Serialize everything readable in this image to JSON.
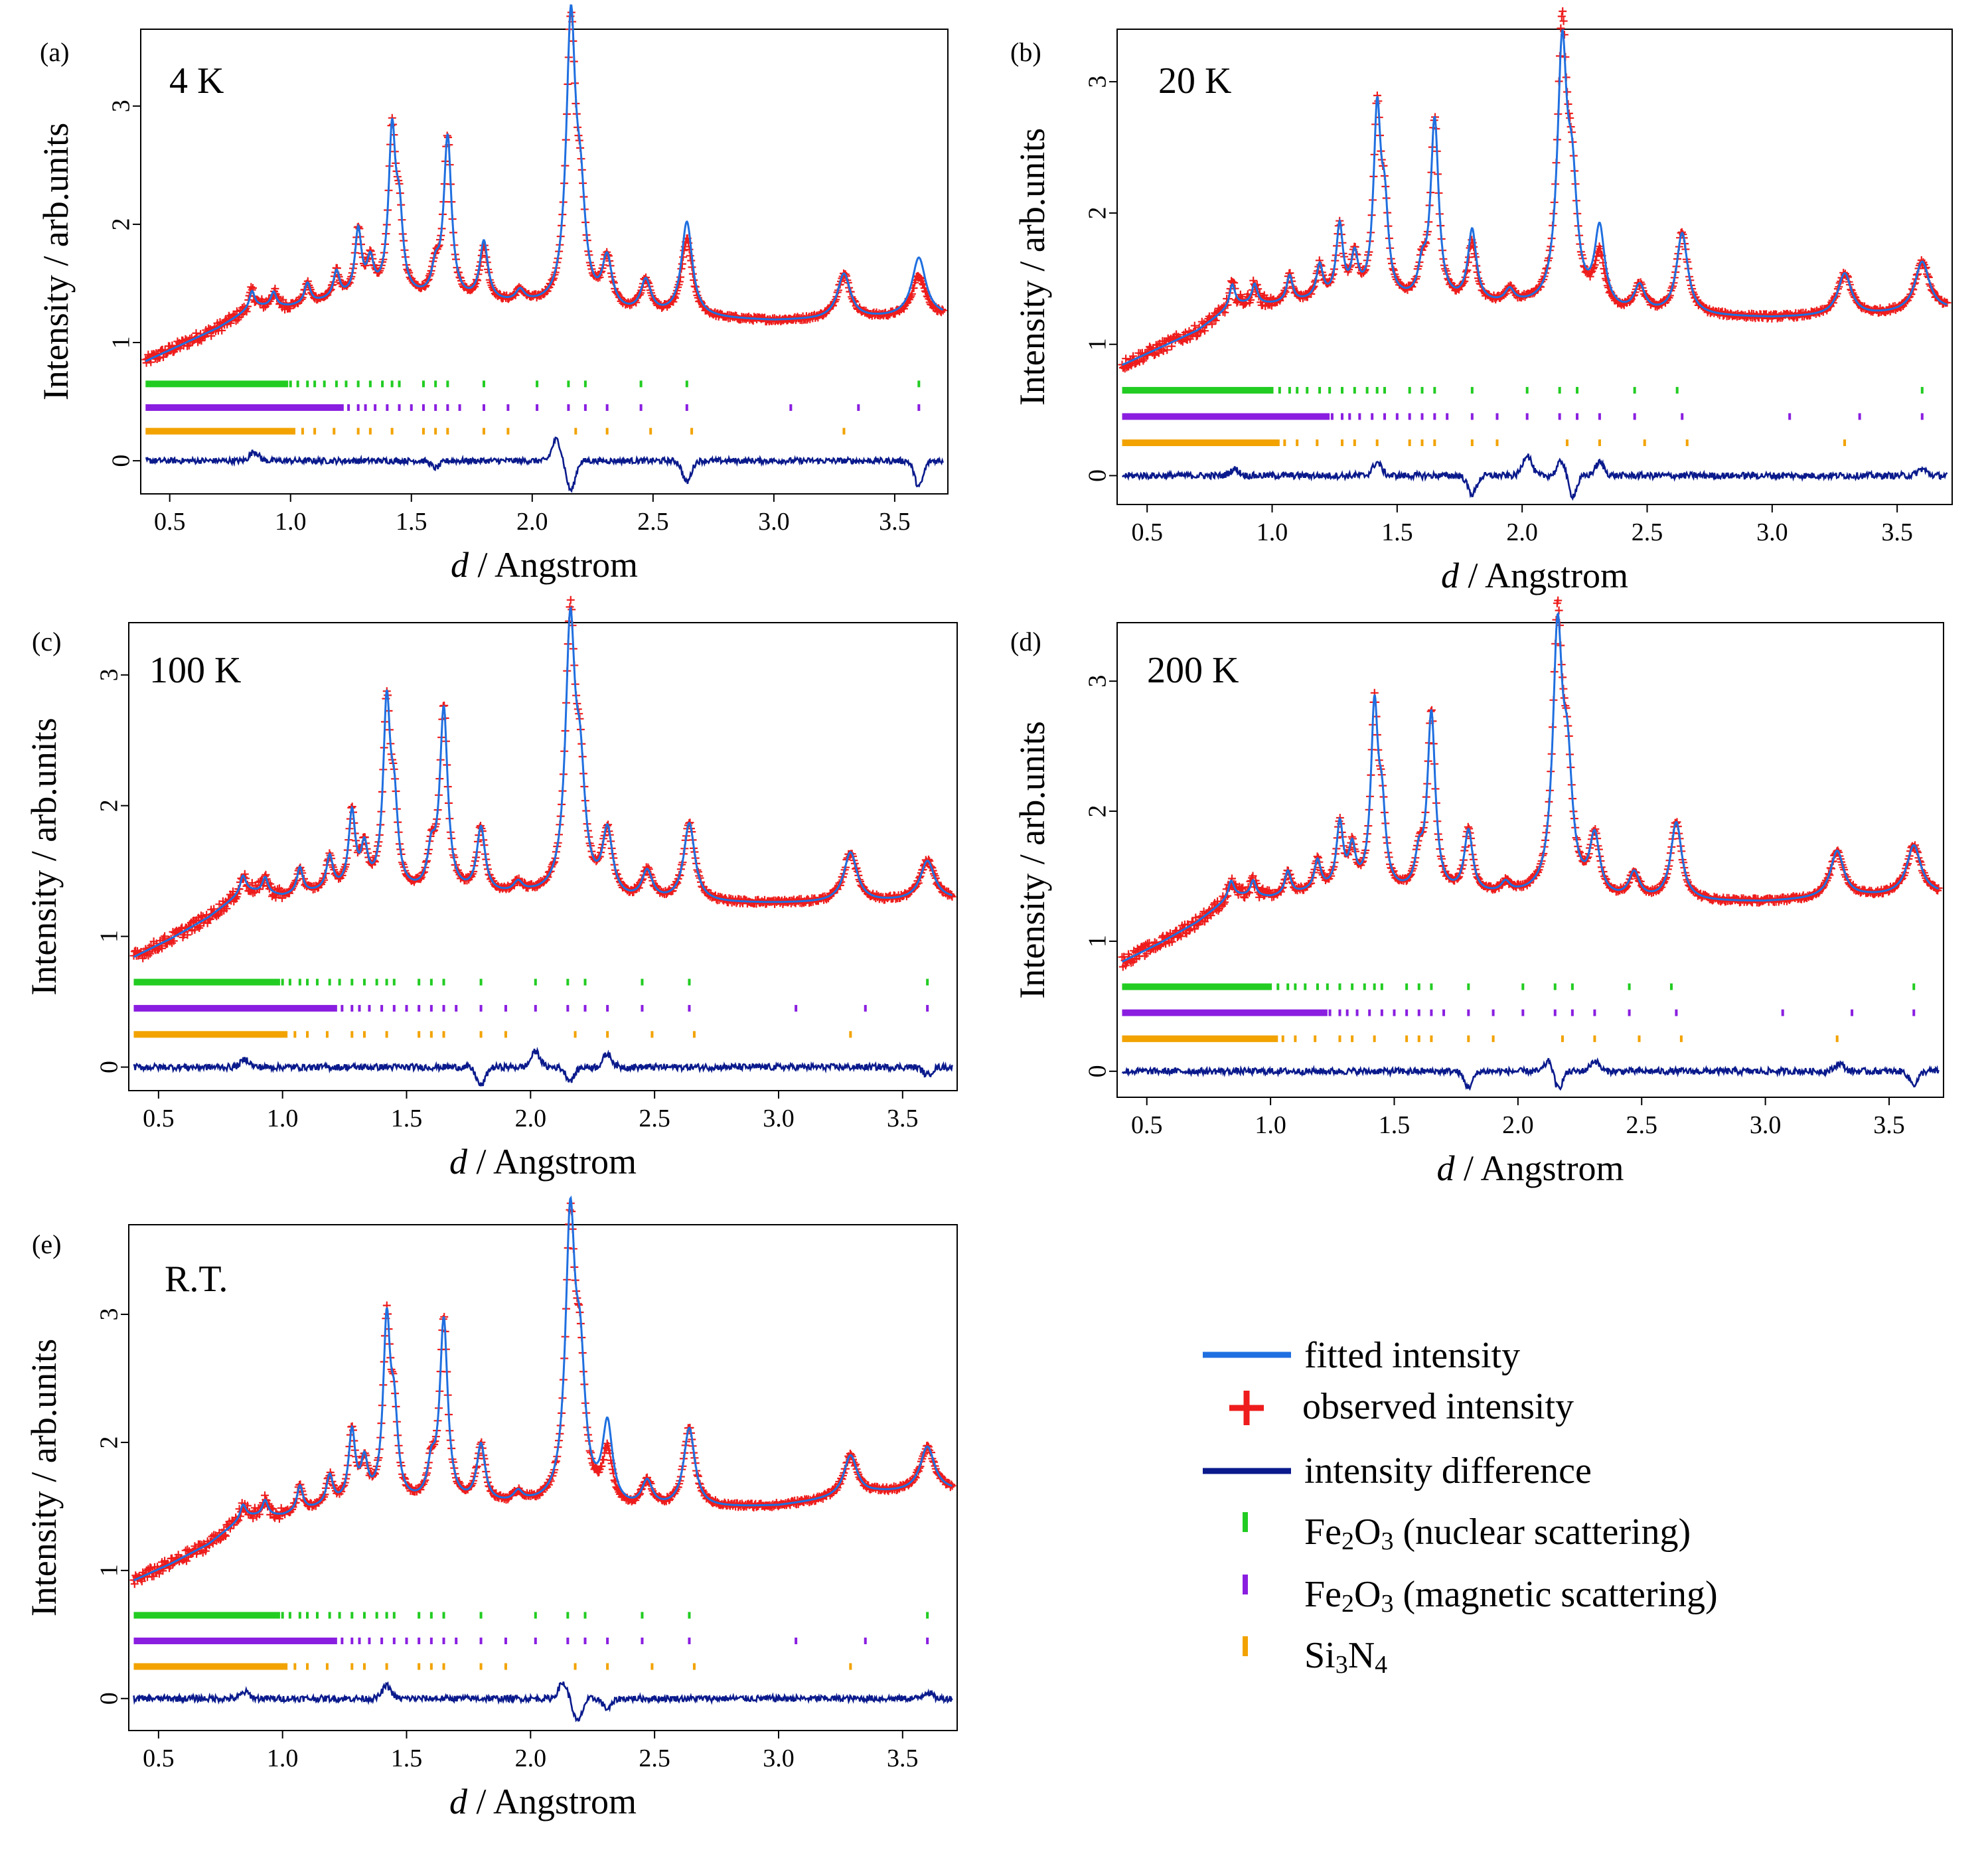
{
  "figure": {
    "xlabel_italic": "d",
    "xlabel_rest": " / Angstrom",
    "ylabel": "Intensity / arb.units"
  },
  "legend": {
    "fitted": "fitted intensity",
    "observed": "observed intensity",
    "difference": "intensity difference",
    "nuclear": {
      "a": "Fe",
      "b": "2",
      "c": "O",
      "d": "3",
      "e": " (nuclear scattering)"
    },
    "magnetic": {
      "a": "Fe",
      "b": "2",
      "c": "O",
      "d": "3",
      "e": " (magnetic scattering)"
    },
    "si3n4": {
      "a": "Si",
      "b": "3",
      "c": "N",
      "d": "4"
    }
  },
  "colors": {
    "fitted": "#1f6fe0",
    "observed": "#ee1c1c",
    "difference": "#0a1a8c",
    "nuclear": "#22cc22",
    "magnetic": "#8a1ee0",
    "si3n4": "#f2a300"
  },
  "chart_data": [
    {
      "id": "a",
      "panel_label": "(a)",
      "temperature": "4 K",
      "type": "line",
      "xlim": [
        0.38,
        3.72
      ],
      "ylim": [
        -0.28,
        3.65
      ],
      "xticks": [
        "0.5",
        "1.0",
        "1.5",
        "2.0",
        "2.5",
        "3.0",
        "3.5"
      ],
      "yticks": [
        "0",
        "1",
        "2",
        "3"
      ],
      "background": [
        [
          0.4,
          0.84
        ],
        [
          0.55,
          0.98
        ],
        [
          0.7,
          1.12
        ],
        [
          0.85,
          1.3
        ],
        [
          1.0,
          1.3
        ],
        [
          1.2,
          1.36
        ],
        [
          1.4,
          1.38
        ],
        [
          1.6,
          1.34
        ],
        [
          2.0,
          1.3
        ],
        [
          2.4,
          1.22
        ],
        [
          3.0,
          1.18
        ],
        [
          3.4,
          1.2
        ],
        [
          3.72,
          1.22
        ]
      ],
      "peaks": [
        [
          0.84,
          0.14
        ],
        [
          0.93,
          0.12
        ],
        [
          1.07,
          0.17
        ],
        [
          1.19,
          0.22
        ],
        [
          1.28,
          0.55
        ],
        [
          1.33,
          0.27
        ],
        [
          1.42,
          1.33
        ],
        [
          1.45,
          0.6
        ],
        [
          1.6,
          0.22
        ],
        [
          1.65,
          1.37
        ],
        [
          1.8,
          0.45
        ],
        [
          1.95,
          0.1
        ],
        [
          2.16,
          2.3
        ],
        [
          2.2,
          0.75
        ],
        [
          2.31,
          0.42
        ],
        [
          2.47,
          0.28
        ],
        [
          2.64,
          0.65
        ],
        [
          3.29,
          0.38
        ],
        [
          3.6,
          0.35
        ]
      ],
      "fit_scale": {
        "2.16": 2.37,
        "2.64": 0.8,
        "3.6": 0.5,
        "1.8": 0.5
      },
      "diff_features": [
        [
          0.85,
          0.08
        ],
        [
          1.6,
          -0.06
        ],
        [
          2.1,
          0.18
        ],
        [
          2.16,
          -0.25
        ],
        [
          2.64,
          -0.18
        ],
        [
          3.6,
          -0.22
        ]
      ],
      "nuclear_ticks": [
        1.0,
        1.03,
        1.07,
        1.1,
        1.14,
        1.19,
        1.23,
        1.28,
        1.33,
        1.38,
        1.42,
        1.45,
        1.55,
        1.6,
        1.65,
        1.8,
        2.02,
        2.15,
        2.22,
        2.45,
        2.64,
        3.6
      ],
      "magnetic_ticks": [
        1.24,
        1.28,
        1.31,
        1.35,
        1.4,
        1.45,
        1.5,
        1.55,
        1.6,
        1.65,
        1.7,
        1.8,
        1.9,
        2.02,
        2.15,
        2.22,
        2.31,
        2.45,
        2.64,
        3.07,
        3.35,
        3.6
      ],
      "si3n4_ticks": [
        1.05,
        1.1,
        1.18,
        1.28,
        1.33,
        1.42,
        1.55,
        1.6,
        1.65,
        1.8,
        1.9,
        2.18,
        2.31,
        2.49,
        2.66,
        3.29
      ],
      "dense_end": [
        0.99,
        1.22,
        1.02
      ]
    },
    {
      "id": "b",
      "panel_label": "(b)",
      "temperature": "20 K",
      "type": "line",
      "xlim": [
        0.38,
        3.72
      ],
      "ylim": [
        -0.22,
        3.4
      ],
      "xticks": [
        "0.5",
        "1.0",
        "1.5",
        "2.0",
        "2.5",
        "3.0",
        "3.5"
      ],
      "yticks": [
        "0",
        "1",
        "2",
        "3"
      ],
      "background": [
        [
          0.4,
          0.84
        ],
        [
          0.55,
          0.97
        ],
        [
          0.7,
          1.1
        ],
        [
          0.85,
          1.3
        ],
        [
          1.0,
          1.3
        ],
        [
          1.2,
          1.33
        ],
        [
          1.4,
          1.32
        ],
        [
          1.6,
          1.3
        ],
        [
          2.0,
          1.28
        ],
        [
          2.4,
          1.22
        ],
        [
          3.0,
          1.2
        ],
        [
          3.4,
          1.22
        ],
        [
          3.72,
          1.26
        ]
      ],
      "peaks": [
        [
          0.84,
          0.16
        ],
        [
          0.93,
          0.15
        ],
        [
          1.07,
          0.2
        ],
        [
          1.19,
          0.25
        ],
        [
          1.27,
          0.55
        ],
        [
          1.33,
          0.3
        ],
        [
          1.42,
          1.38
        ],
        [
          1.45,
          0.6
        ],
        [
          1.6,
          0.22
        ],
        [
          1.65,
          1.38
        ],
        [
          1.8,
          0.45
        ],
        [
          1.95,
          0.1
        ],
        [
          2.16,
          2.05
        ],
        [
          2.2,
          0.8
        ],
        [
          2.31,
          0.4
        ],
        [
          2.47,
          0.2
        ],
        [
          2.64,
          0.62
        ],
        [
          3.29,
          0.32
        ],
        [
          3.6,
          0.38
        ]
      ],
      "fit_scale": {
        "2.16": 1.9,
        "1.8": 0.55,
        "2.31": 0.6
      },
      "diff_features": [
        [
          0.85,
          0.05
        ],
        [
          1.42,
          0.1
        ],
        [
          1.8,
          -0.14
        ],
        [
          2.02,
          0.16
        ],
        [
          2.16,
          0.12
        ],
        [
          2.2,
          -0.16
        ],
        [
          2.31,
          0.1
        ],
        [
          3.6,
          0.05
        ]
      ],
      "nuclear_ticks": [
        1.0,
        1.03,
        1.07,
        1.1,
        1.14,
        1.19,
        1.23,
        1.28,
        1.33,
        1.38,
        1.42,
        1.45,
        1.55,
        1.6,
        1.65,
        1.8,
        2.02,
        2.15,
        2.22,
        2.45,
        2.62,
        3.6
      ],
      "magnetic_ticks": [
        1.24,
        1.28,
        1.31,
        1.35,
        1.4,
        1.45,
        1.5,
        1.55,
        1.6,
        1.65,
        1.7,
        1.8,
        1.9,
        2.02,
        2.15,
        2.22,
        2.31,
        2.45,
        2.64,
        3.07,
        3.35,
        3.6
      ],
      "si3n4_ticks": [
        1.05,
        1.1,
        1.18,
        1.28,
        1.33,
        1.42,
        1.55,
        1.6,
        1.65,
        1.8,
        1.9,
        2.18,
        2.31,
        2.49,
        2.66,
        3.29
      ],
      "dense_end": [
        1.0,
        1.23,
        1.03
      ]
    },
    {
      "id": "c",
      "panel_label": "(c)",
      "temperature": "100 K",
      "type": "line",
      "xlim": [
        0.38,
        3.72
      ],
      "ylim": [
        -0.18,
        3.4
      ],
      "xticks": [
        "0.5",
        "1.0",
        "1.5",
        "2.0",
        "2.5",
        "3.0",
        "3.5"
      ],
      "yticks": [
        "0",
        "1",
        "2",
        "3"
      ],
      "background": [
        [
          0.4,
          0.84
        ],
        [
          0.55,
          0.98
        ],
        [
          0.7,
          1.14
        ],
        [
          0.85,
          1.35
        ],
        [
          1.0,
          1.3
        ],
        [
          1.2,
          1.34
        ],
        [
          1.4,
          1.32
        ],
        [
          1.6,
          1.3
        ],
        [
          2.0,
          1.3
        ],
        [
          2.4,
          1.25
        ],
        [
          3.0,
          1.25
        ],
        [
          3.4,
          1.26
        ],
        [
          3.72,
          1.28
        ]
      ],
      "peaks": [
        [
          0.84,
          0.12
        ],
        [
          0.93,
          0.12
        ],
        [
          1.07,
          0.2
        ],
        [
          1.19,
          0.25
        ],
        [
          1.28,
          0.58
        ],
        [
          1.33,
          0.3
        ],
        [
          1.42,
          1.38
        ],
        [
          1.45,
          0.58
        ],
        [
          1.6,
          0.28
        ],
        [
          1.65,
          1.4
        ],
        [
          1.8,
          0.5
        ],
        [
          1.95,
          0.08
        ],
        [
          2.16,
          2.05
        ],
        [
          2.2,
          0.8
        ],
        [
          2.31,
          0.5
        ],
        [
          2.47,
          0.22
        ],
        [
          2.64,
          0.6
        ],
        [
          3.29,
          0.38
        ],
        [
          3.6,
          0.3
        ]
      ],
      "fit_scale": {
        "2.16": 2.0
      },
      "diff_features": [
        [
          0.85,
          0.06
        ],
        [
          1.8,
          -0.14
        ],
        [
          2.02,
          0.12
        ],
        [
          2.16,
          -0.1
        ],
        [
          2.31,
          0.1
        ],
        [
          3.6,
          -0.06
        ]
      ],
      "nuclear_ticks": [
        1.0,
        1.03,
        1.07,
        1.1,
        1.14,
        1.19,
        1.23,
        1.28,
        1.33,
        1.38,
        1.42,
        1.45,
        1.55,
        1.6,
        1.65,
        1.8,
        2.02,
        2.15,
        2.22,
        2.45,
        2.64,
        3.6
      ],
      "magnetic_ticks": [
        1.24,
        1.28,
        1.31,
        1.35,
        1.4,
        1.45,
        1.5,
        1.55,
        1.6,
        1.65,
        1.7,
        1.8,
        1.9,
        2.02,
        2.15,
        2.22,
        2.31,
        2.45,
        2.64,
        3.07,
        3.35,
        3.6
      ],
      "si3n4_ticks": [
        1.05,
        1.1,
        1.18,
        1.28,
        1.33,
        1.42,
        1.55,
        1.6,
        1.65,
        1.8,
        1.9,
        2.18,
        2.31,
        2.49,
        2.66,
        3.29
      ],
      "dense_end": [
        0.99,
        1.22,
        1.02
      ]
    },
    {
      "id": "d",
      "panel_label": "(d)",
      "temperature": "200 K",
      "type": "line",
      "xlim": [
        0.38,
        3.72
      ],
      "ylim": [
        -0.2,
        3.45
      ],
      "xticks": [
        "0.5",
        "1.0",
        "1.5",
        "2.0",
        "2.5",
        "3.0",
        "3.5"
      ],
      "yticks": [
        "0",
        "1",
        "2",
        "3"
      ],
      "background": [
        [
          0.4,
          0.84
        ],
        [
          0.55,
          0.98
        ],
        [
          0.7,
          1.14
        ],
        [
          0.85,
          1.35
        ],
        [
          1.0,
          1.33
        ],
        [
          1.2,
          1.38
        ],
        [
          1.4,
          1.36
        ],
        [
          1.6,
          1.34
        ],
        [
          2.0,
          1.34
        ],
        [
          2.4,
          1.3
        ],
        [
          3.0,
          1.3
        ],
        [
          3.4,
          1.34
        ],
        [
          3.72,
          1.36
        ]
      ],
      "peaks": [
        [
          0.84,
          0.12
        ],
        [
          0.93,
          0.12
        ],
        [
          1.07,
          0.18
        ],
        [
          1.19,
          0.22
        ],
        [
          1.28,
          0.5
        ],
        [
          1.33,
          0.3
        ],
        [
          1.42,
          1.36
        ],
        [
          1.45,
          0.55
        ],
        [
          1.6,
          0.25
        ],
        [
          1.65,
          1.38
        ],
        [
          1.8,
          0.48
        ],
        [
          1.95,
          0.08
        ],
        [
          2.16,
          2.05
        ],
        [
          2.2,
          0.85
        ],
        [
          2.31,
          0.45
        ],
        [
          2.47,
          0.2
        ],
        [
          2.64,
          0.6
        ],
        [
          3.29,
          0.36
        ],
        [
          3.6,
          0.38
        ]
      ],
      "fit_scale": {
        "2.16": 1.95
      },
      "diff_features": [
        [
          1.8,
          -0.12
        ],
        [
          2.13,
          0.1
        ],
        [
          2.16,
          -0.15
        ],
        [
          2.31,
          0.08
        ],
        [
          3.3,
          0.06
        ],
        [
          3.6,
          -0.1
        ]
      ],
      "nuclear_ticks": [
        1.0,
        1.03,
        1.07,
        1.1,
        1.14,
        1.19,
        1.23,
        1.28,
        1.33,
        1.38,
        1.42,
        1.45,
        1.55,
        1.6,
        1.65,
        1.8,
        2.02,
        2.15,
        2.22,
        2.45,
        2.62,
        3.6
      ],
      "magnetic_ticks": [
        1.24,
        1.28,
        1.31,
        1.35,
        1.4,
        1.45,
        1.5,
        1.55,
        1.6,
        1.65,
        1.7,
        1.8,
        1.9,
        2.02,
        2.15,
        2.22,
        2.31,
        2.45,
        2.64,
        3.07,
        3.35,
        3.6
      ],
      "si3n4_ticks": [
        1.05,
        1.1,
        1.18,
        1.28,
        1.33,
        1.42,
        1.55,
        1.6,
        1.65,
        1.8,
        1.9,
        2.18,
        2.31,
        2.49,
        2.66,
        3.29
      ],
      "dense_end": [
        1.0,
        1.23,
        1.03
      ]
    },
    {
      "id": "e",
      "panel_label": "(e)",
      "temperature": "R.T.",
      "type": "line",
      "xlim": [
        0.38,
        3.72
      ],
      "ylim": [
        -0.25,
        3.7
      ],
      "xticks": [
        "0.5",
        "1.0",
        "1.5",
        "2.0",
        "2.5",
        "3.0",
        "3.5"
      ],
      "yticks": [
        "0",
        "1",
        "2",
        "3"
      ],
      "background": [
        [
          0.4,
          0.92
        ],
        [
          0.55,
          1.05
        ],
        [
          0.7,
          1.2
        ],
        [
          0.85,
          1.42
        ],
        [
          1.0,
          1.42
        ],
        [
          1.2,
          1.5
        ],
        [
          1.4,
          1.5
        ],
        [
          1.6,
          1.5
        ],
        [
          2.0,
          1.5
        ],
        [
          2.4,
          1.46
        ],
        [
          3.0,
          1.5
        ],
        [
          3.4,
          1.6
        ],
        [
          3.72,
          1.62
        ]
      ],
      "peaks": [
        [
          0.84,
          0.1
        ],
        [
          0.93,
          0.12
        ],
        [
          1.07,
          0.2
        ],
        [
          1.19,
          0.22
        ],
        [
          1.28,
          0.55
        ],
        [
          1.33,
          0.3
        ],
        [
          1.42,
          1.36
        ],
        [
          1.45,
          0.6
        ],
        [
          1.6,
          0.25
        ],
        [
          1.65,
          1.42
        ],
        [
          1.8,
          0.45
        ],
        [
          1.95,
          0.08
        ],
        [
          2.16,
          2.1
        ],
        [
          2.2,
          0.95
        ],
        [
          2.31,
          0.4
        ],
        [
          2.47,
          0.2
        ],
        [
          2.64,
          0.62
        ],
        [
          3.29,
          0.32
        ],
        [
          3.6,
          0.35
        ]
      ],
      "fit_scale": {
        "2.16": 2.15,
        "2.31": 0.62
      },
      "diff_features": [
        [
          0.85,
          0.05
        ],
        [
          1.42,
          0.1
        ],
        [
          2.13,
          0.12
        ],
        [
          2.19,
          -0.18
        ],
        [
          2.31,
          -0.08
        ],
        [
          3.6,
          0.05
        ]
      ],
      "nuclear_ticks": [
        1.0,
        1.03,
        1.07,
        1.1,
        1.14,
        1.19,
        1.23,
        1.28,
        1.33,
        1.38,
        1.42,
        1.45,
        1.55,
        1.6,
        1.65,
        1.8,
        2.02,
        2.15,
        2.22,
        2.45,
        2.64,
        3.6
      ],
      "magnetic_ticks": [
        1.24,
        1.28,
        1.31,
        1.35,
        1.4,
        1.45,
        1.5,
        1.55,
        1.6,
        1.65,
        1.7,
        1.8,
        1.9,
        2.02,
        2.15,
        2.22,
        2.31,
        2.45,
        2.64,
        3.07,
        3.35,
        3.6
      ],
      "si3n4_ticks": [
        1.05,
        1.1,
        1.18,
        1.28,
        1.33,
        1.42,
        1.55,
        1.6,
        1.65,
        1.8,
        1.9,
        2.18,
        2.31,
        2.49,
        2.66,
        3.29
      ],
      "dense_end": [
        0.99,
        1.22,
        1.02
      ]
    }
  ]
}
